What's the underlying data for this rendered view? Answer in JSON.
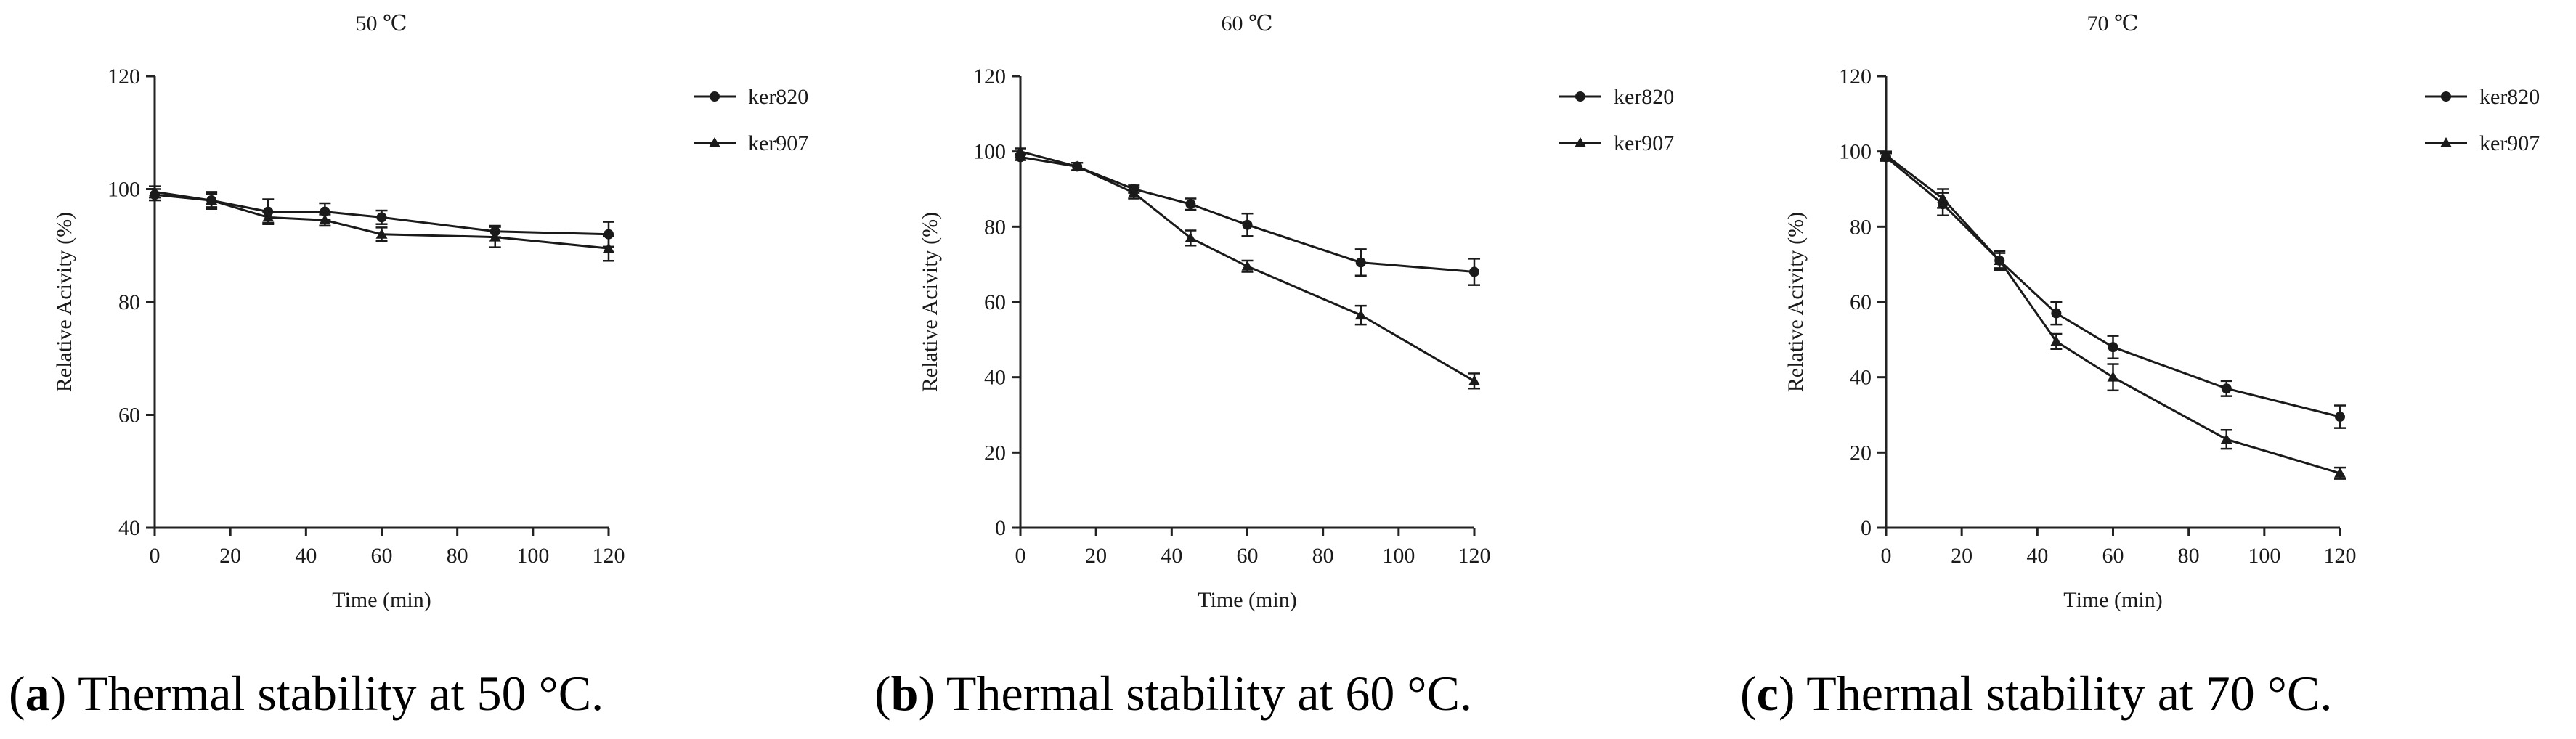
{
  "chart_data": [
    {
      "type": "line",
      "title": "50 ℃",
      "xlabel": "Time (min)",
      "ylabel": "Relative Acivity (%)",
      "xlim": [
        0,
        120
      ],
      "ylim": [
        40,
        120
      ],
      "xticks": [
        0,
        20,
        40,
        60,
        80,
        100,
        120
      ],
      "yticks": [
        40,
        60,
        80,
        100,
        120
      ],
      "x": [
        0,
        15,
        30,
        45,
        60,
        90,
        120
      ],
      "series": [
        {
          "name": "ker820",
          "marker": "circle",
          "values": [
            99,
            98,
            96,
            96,
            95,
            92.5,
            92
          ],
          "errors": [
            1.0,
            1.2,
            2.2,
            1.5,
            1.2,
            1.0,
            2.2
          ]
        },
        {
          "name": "ker907",
          "marker": "triangle",
          "values": [
            99.5,
            98,
            95,
            94.5,
            92,
            91.5,
            89.5
          ],
          "errors": [
            1.0,
            1.5,
            1.0,
            1.0,
            1.2,
            1.8,
            2.2
          ]
        }
      ],
      "legend_position": "top-right",
      "caption_label": "a",
      "caption_text": " Thermal stability at 50 °C."
    },
    {
      "type": "line",
      "title": "60 ℃",
      "xlabel": "Time (min)",
      "ylabel": "Relative Acivity (%)",
      "xlim": [
        0,
        120
      ],
      "ylim": [
        0,
        120
      ],
      "xticks": [
        0,
        20,
        40,
        60,
        80,
        100,
        120
      ],
      "yticks": [
        0,
        20,
        40,
        60,
        80,
        100,
        120
      ],
      "x": [
        0,
        15,
        30,
        45,
        60,
        90,
        120
      ],
      "series": [
        {
          "name": "ker820",
          "marker": "circle",
          "values": [
            98.5,
            96,
            90,
            86,
            80.5,
            70.5,
            68
          ],
          "errors": [
            0.8,
            1.0,
            1.0,
            1.5,
            3.0,
            3.5,
            3.5
          ]
        },
        {
          "name": "ker907",
          "marker": "triangle",
          "values": [
            100,
            96,
            89,
            77,
            69.5,
            56.5,
            39
          ],
          "errors": [
            0.8,
            1.0,
            1.5,
            2.0,
            1.5,
            2.5,
            2.0
          ]
        }
      ],
      "legend_position": "top-right",
      "caption_label": "b",
      "caption_text": " Thermal stability at 60 °C."
    },
    {
      "type": "line",
      "title": "70 ℃",
      "xlabel": "Time (min)",
      "ylabel": "Relative Acivity (%)",
      "xlim": [
        0,
        120
      ],
      "ylim": [
        0,
        120
      ],
      "xticks": [
        0,
        20,
        40,
        60,
        80,
        100,
        120
      ],
      "yticks": [
        0,
        20,
        40,
        60,
        80,
        100,
        120
      ],
      "x": [
        0,
        15,
        30,
        45,
        60,
        90,
        120
      ],
      "series": [
        {
          "name": "ker820",
          "marker": "circle",
          "values": [
            98.5,
            86,
            71,
            57,
            48,
            37,
            29.5
          ],
          "errors": [
            1.0,
            3.0,
            2.5,
            3.0,
            3.0,
            2.0,
            3.0
          ]
        },
        {
          "name": "ker907",
          "marker": "triangle",
          "values": [
            99,
            87.5,
            71,
            49.5,
            40,
            23.5,
            14.5
          ],
          "errors": [
            1.0,
            2.5,
            2.0,
            2.0,
            3.5,
            2.5,
            1.5
          ]
        }
      ],
      "legend_position": "top-right",
      "caption_label": "c",
      "caption_text": " Thermal stability at 70 °C."
    }
  ]
}
